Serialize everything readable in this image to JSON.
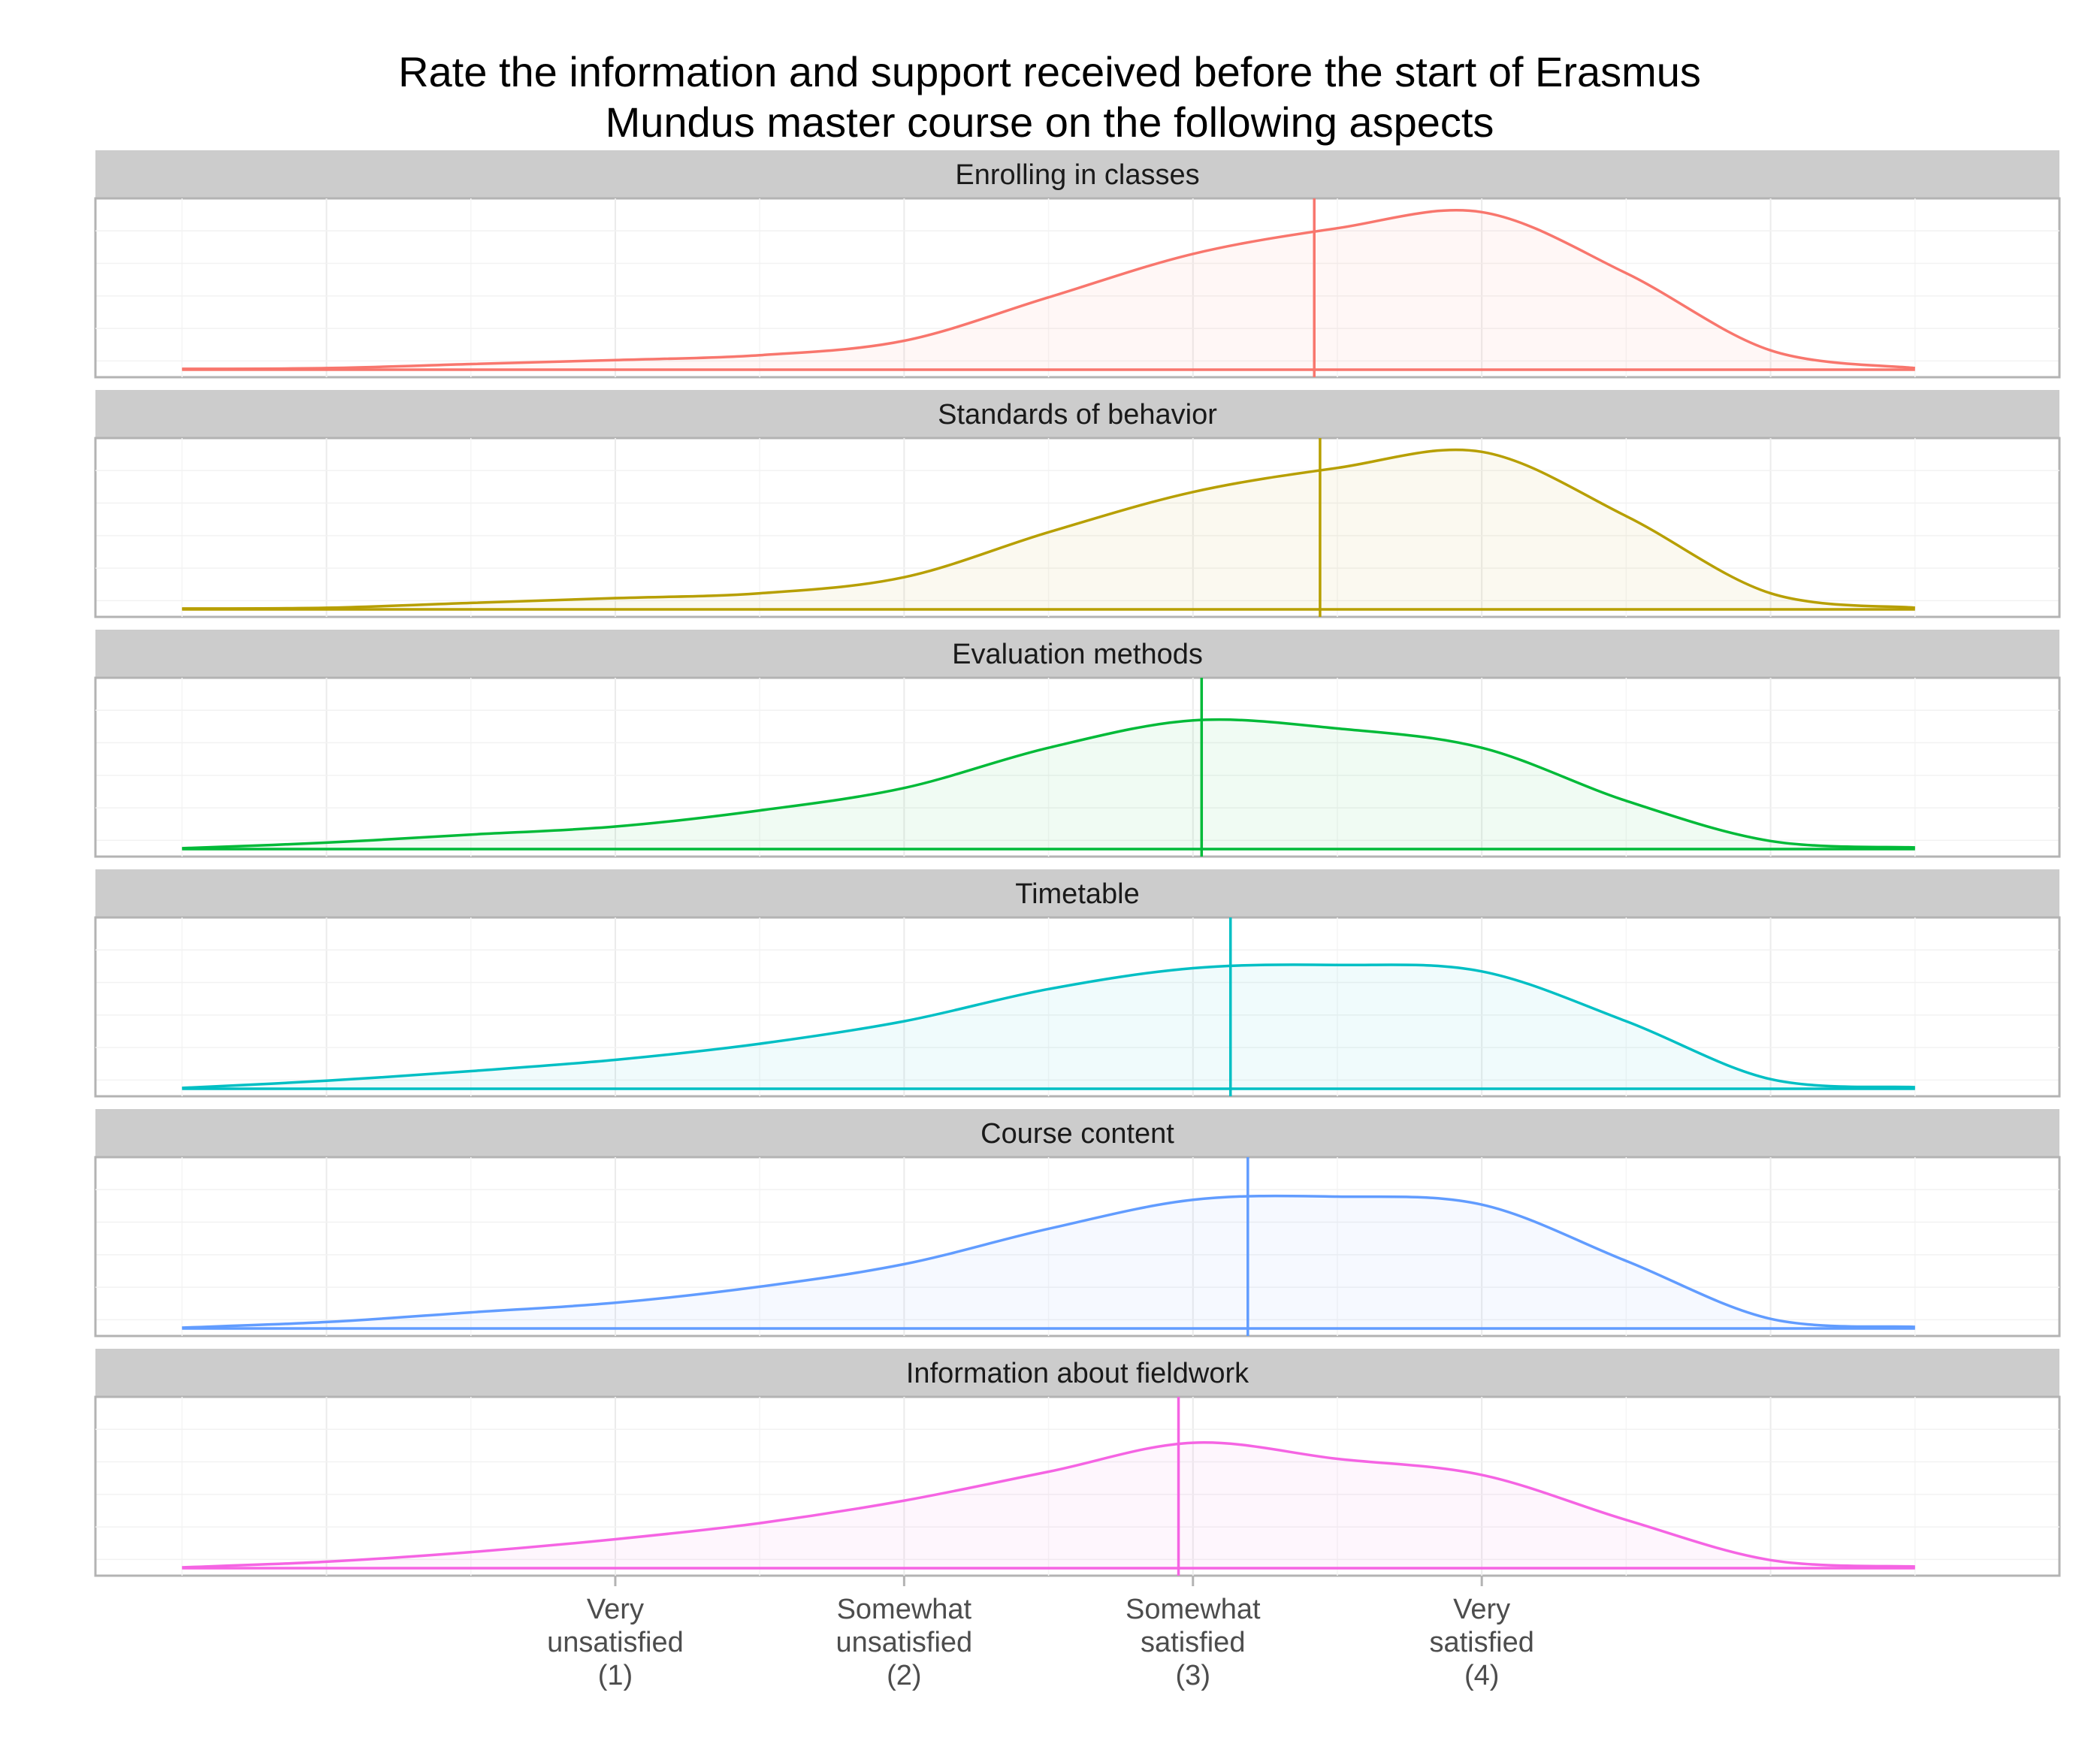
{
  "chart_data": {
    "type": "area",
    "title_lines": [
      "Rate the information and support received before the start of Erasmus",
      "Mundus master course on the following aspects"
    ],
    "xlabel": "",
    "ylabel": "",
    "xlim": [
      -0.8,
      6.0
    ],
    "x_ticks": [
      {
        "value": 1,
        "lines": [
          "Very",
          "unsatisfied",
          "(1)"
        ]
      },
      {
        "value": 2,
        "lines": [
          "Somewhat",
          "unsatisfied",
          "(2)"
        ]
      },
      {
        "value": 3,
        "lines": [
          "Somewhat",
          "satisfied",
          "(3)"
        ]
      },
      {
        "value": 4,
        "lines": [
          "Very",
          "satisfied",
          "(4)"
        ]
      }
    ],
    "x": [
      -0.5,
      0.0,
      0.5,
      1.0,
      1.5,
      2.0,
      2.5,
      3.0,
      3.5,
      4.0,
      4.5,
      5.0,
      5.5
    ],
    "series": [
      {
        "name": "Enrolling in classes",
        "color": "#F8766D",
        "mean": 3.42,
        "density": [
          0.005,
          0.01,
          0.035,
          0.06,
          0.09,
          0.18,
          0.45,
          0.72,
          0.88,
          0.98,
          0.6,
          0.12,
          0.01
        ]
      },
      {
        "name": "Standards of behavior",
        "color": "#B79F00",
        "mean": 3.44,
        "density": [
          0.005,
          0.01,
          0.04,
          0.07,
          0.1,
          0.2,
          0.48,
          0.73,
          0.88,
          0.98,
          0.58,
          0.1,
          0.01
        ]
      },
      {
        "name": "Evaluation methods",
        "color": "#00BA38",
        "mean": 3.03,
        "density": [
          0.005,
          0.04,
          0.09,
          0.14,
          0.24,
          0.38,
          0.63,
          0.8,
          0.75,
          0.63,
          0.3,
          0.05,
          0.01
        ]
      },
      {
        "name": "Timetable",
        "color": "#00BFC4",
        "mean": 3.13,
        "density": [
          0.005,
          0.05,
          0.11,
          0.18,
          0.28,
          0.42,
          0.62,
          0.75,
          0.77,
          0.73,
          0.42,
          0.06,
          0.01
        ]
      },
      {
        "name": "Course content",
        "color": "#619CFF",
        "mean": 3.19,
        "density": [
          0.005,
          0.04,
          0.1,
          0.16,
          0.26,
          0.4,
          0.62,
          0.8,
          0.82,
          0.77,
          0.42,
          0.06,
          0.01
        ]
      },
      {
        "name": "Information about fieldwork",
        "color": "#F564E3",
        "mean": 2.95,
        "density": [
          0.005,
          0.04,
          0.1,
          0.18,
          0.28,
          0.42,
          0.6,
          0.78,
          0.68,
          0.58,
          0.3,
          0.05,
          0.01
        ]
      }
    ]
  }
}
